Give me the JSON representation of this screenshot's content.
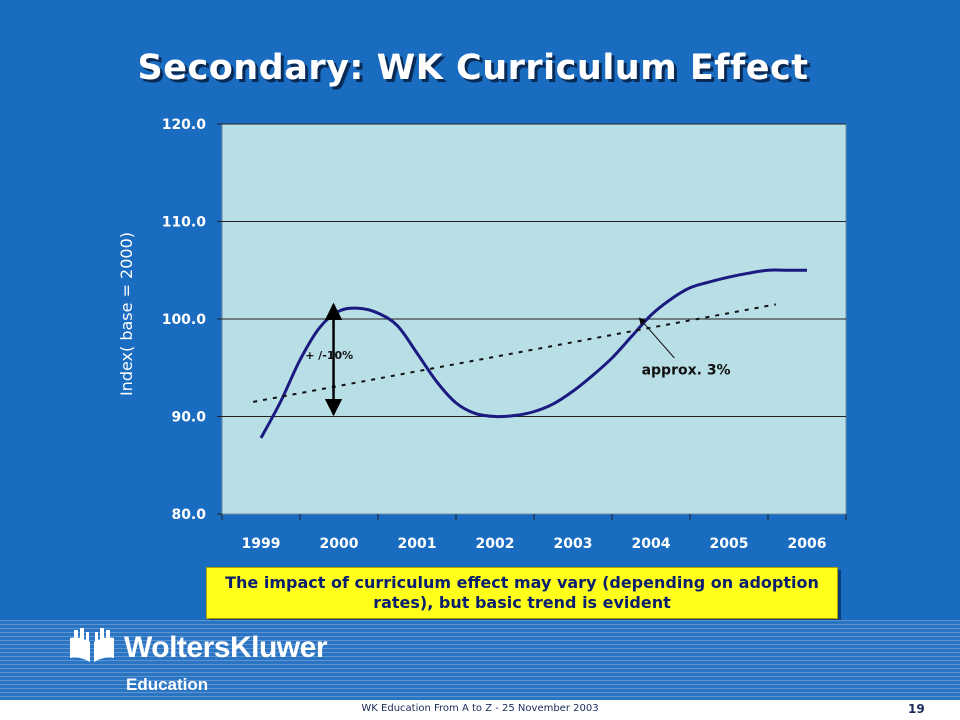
{
  "slide": {
    "title": "Secondary: WK Curriculum Effect",
    "callout": "The impact of curriculum effect may vary (depending on adoption rates), but basic trend is evident",
    "logo_name": "WoltersKluwer",
    "logo_sub": "Education",
    "footer": "WK Education From A to Z - 25 November 2003",
    "page": "19"
  },
  "colors": {
    "background": "#1a6cc0",
    "plot_area": "#b9dfe6",
    "series_line": "#1a1a80",
    "callout_bg": "#ffff1a"
  },
  "chart_data": {
    "type": "line",
    "title": "",
    "xlabel": "",
    "ylabel": "Index( base = 2000)",
    "categories": [
      "1999",
      "2000",
      "2001",
      "2002",
      "2003",
      "2004",
      "2005",
      "2006"
    ],
    "ylim": [
      80,
      120
    ],
    "yticks": [
      "80.0",
      "90.0",
      "100.0",
      "110.0",
      "120.0"
    ],
    "grid": true,
    "series": [
      {
        "style": "solid",
        "x": [
          0,
          0.25,
          0.5,
          0.75,
          1.0,
          1.25,
          1.5,
          1.75,
          2.0,
          2.25,
          2.5,
          2.75,
          3.0,
          3.25,
          3.5,
          3.75,
          4.0,
          4.25,
          4.5,
          4.75,
          5.0,
          5.25,
          5.5,
          5.75,
          6.0,
          6.25,
          6.5,
          6.75,
          7.0
        ],
        "values": [
          87.8,
          91.5,
          95.8,
          99.1,
          100.8,
          101.1,
          100.6,
          99.3,
          96.5,
          93.6,
          91.4,
          90.3,
          90.0,
          90.1,
          90.5,
          91.3,
          92.6,
          94.2,
          96.0,
          98.2,
          100.4,
          102.0,
          103.2,
          103.8,
          104.3,
          104.7,
          105.0,
          105.0,
          105.0
        ]
      },
      {
        "style": "dotted",
        "x": [
          -0.1,
          6.6
        ],
        "values": [
          91.5,
          101.5
        ]
      }
    ],
    "annotations": [
      {
        "text": "+ /-10%",
        "x": 0.9,
        "y": 96.3,
        "arrow_y": [
          101.5,
          90.2
        ]
      },
      {
        "text": "approx. 3%",
        "x": 5.45,
        "y": 94.3,
        "arrow_from_y": 96.0,
        "arrow_to": [
          4.85,
          100.1
        ]
      }
    ]
  }
}
